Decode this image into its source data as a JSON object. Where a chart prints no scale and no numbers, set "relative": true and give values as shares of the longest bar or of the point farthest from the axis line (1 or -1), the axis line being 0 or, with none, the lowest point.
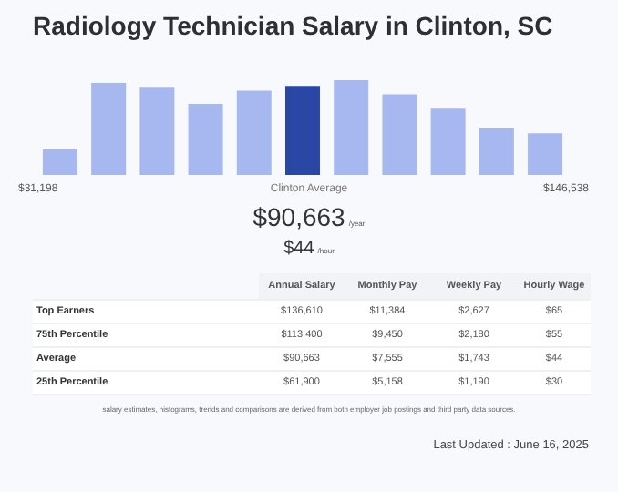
{
  "chart_data": {
    "type": "bar",
    "title": "Radiology Technician Salary in Clinton, SC",
    "relative": true,
    "categories": [
      null,
      null,
      null,
      null,
      null,
      null,
      null,
      null,
      null,
      null,
      null
    ],
    "values": [
      0.27,
      0.97,
      0.92,
      0.75,
      0.89,
      0.94,
      1,
      0.85,
      0.7,
      0.49,
      0.44
    ],
    "colors": [
      "#a6b8ef",
      "#a6b8ef",
      "#a6b8ef",
      "#a6b8ef",
      "#a6b8ef",
      "#2a47a5",
      "#a6b8ef",
      "#a6b8ef",
      "#a6b8ef",
      "#a6b8ef",
      "#a6b8ef"
    ],
    "annotations": [
      "$31,198",
      "Clinton Average",
      "$146,538",
      "$90,663",
      "/year",
      "$44",
      "/hour",
      "Annual Salary",
      "Monthly Pay",
      "Weekly Pay",
      "Hourly Wage",
      "Top Earners",
      "$136,610",
      "$11,384",
      "$2,627",
      "$65",
      "75th Percentile",
      "$113,400",
      "$9,450",
      "$2,180",
      "$55",
      "Average",
      "$90,663",
      "$7,555",
      "$1,743",
      "$44",
      "25th Percentile",
      "$61,900",
      "$5,158",
      "$1,190",
      "$30",
      "salary estimates, histograms, trends and comparisons are derived from both employer job postings and third party data sources.",
      "Last Updated : June 16, 2025"
    ]
  }
}
